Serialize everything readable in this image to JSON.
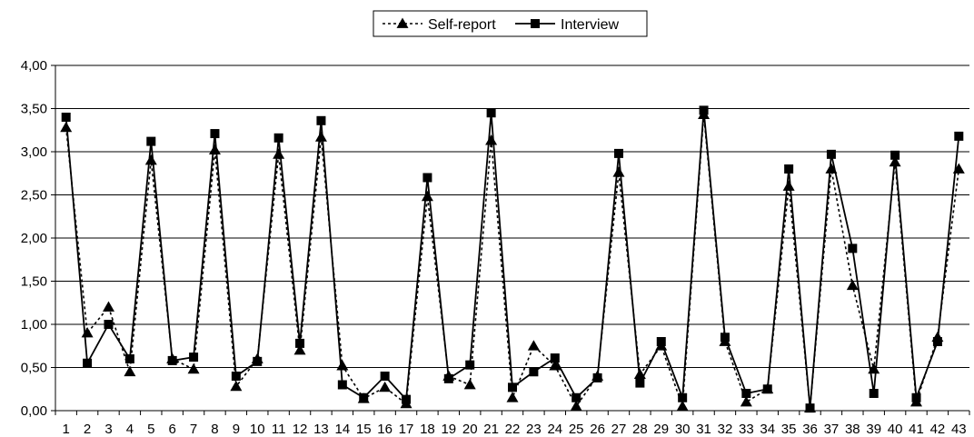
{
  "chart_data": {
    "type": "line",
    "title": "",
    "xlabel": "",
    "ylabel": "",
    "ylim": [
      0,
      4
    ],
    "yticks": [
      "0,00",
      "0,50",
      "1,00",
      "1,50",
      "2,00",
      "2,50",
      "3,00",
      "3,50",
      "4,00"
    ],
    "grid": "horizontal",
    "legend_position": "top-center",
    "x": [
      "1",
      "2",
      "3",
      "4",
      "5",
      "6",
      "7",
      "8",
      "9",
      "10",
      "11",
      "12",
      "13",
      "14",
      "15",
      "16",
      "17",
      "18",
      "19",
      "20",
      "21",
      "22",
      "23",
      "24",
      "25",
      "26",
      "27",
      "28",
      "29",
      "30",
      "31",
      "32",
      "33",
      "34",
      "35",
      "36",
      "37",
      "38",
      "39",
      "40",
      "41",
      "42",
      "43"
    ],
    "series": [
      {
        "name": "Self-report",
        "marker": "triangle",
        "line_style": "dashed",
        "color": "#000000",
        "values": [
          3.28,
          0.9,
          1.2,
          0.45,
          2.9,
          0.6,
          0.48,
          3.02,
          0.28,
          0.6,
          2.97,
          0.7,
          3.17,
          0.52,
          0.14,
          0.27,
          0.08,
          2.48,
          0.4,
          0.3,
          3.13,
          0.15,
          0.75,
          0.52,
          0.05,
          0.4,
          2.76,
          0.42,
          0.75,
          0.05,
          3.43,
          0.8,
          0.1,
          0.25,
          2.6,
          0.03,
          2.8,
          1.45,
          0.48,
          2.88,
          0.1,
          0.85,
          2.8
        ]
      },
      {
        "name": "Interview",
        "marker": "square",
        "line_style": "solid",
        "color": "#000000",
        "values": [
          3.4,
          0.55,
          1.0,
          0.6,
          3.12,
          0.58,
          0.62,
          3.21,
          0.4,
          0.57,
          3.16,
          0.78,
          3.36,
          0.3,
          0.15,
          0.4,
          0.13,
          2.7,
          0.37,
          0.53,
          3.45,
          0.27,
          0.45,
          0.61,
          0.15,
          0.38,
          2.98,
          0.32,
          0.8,
          0.15,
          3.48,
          0.85,
          0.2,
          0.25,
          2.8,
          0.03,
          2.97,
          1.88,
          0.2,
          2.96,
          0.15,
          0.8,
          3.18
        ]
      }
    ]
  }
}
